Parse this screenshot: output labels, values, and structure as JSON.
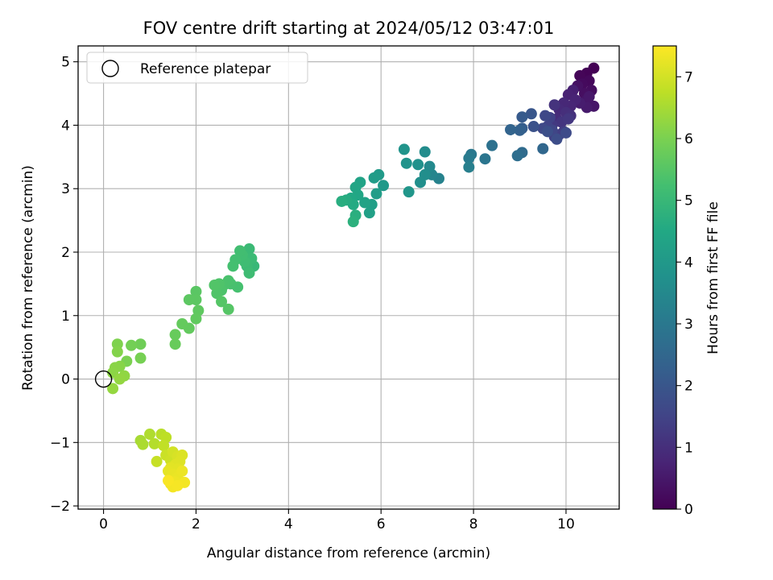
{
  "chart_data": {
    "type": "scatter",
    "title": "FOV centre drift starting at 2024/05/12 03:47:01",
    "xlabel": "Angular distance from reference (arcmin)",
    "ylabel": "Rotation from reference (arcmin)",
    "xlim": [
      -0.55,
      11.15
    ],
    "ylim": [
      -2.05,
      5.25
    ],
    "xticks": [
      0,
      2,
      4,
      6,
      8,
      10
    ],
    "yticks": [
      -2,
      -1,
      0,
      1,
      2,
      3,
      4,
      5
    ],
    "xtick_labels": [
      "0",
      "2",
      "4",
      "6",
      "8",
      "10"
    ],
    "ytick_labels": [
      "−2",
      "−1",
      "0",
      "1",
      "2",
      "3",
      "4",
      "5"
    ],
    "grid": true,
    "legend": {
      "position": "top-left",
      "entries": [
        "Reference platepar"
      ]
    },
    "reference_point": {
      "x": 0,
      "y": 0
    },
    "colorbar": {
      "label": "Hours from first FF file",
      "range": [
        0,
        7.5
      ],
      "ticks": [
        0,
        1,
        2,
        3,
        4,
        5,
        6,
        7
      ],
      "tick_labels": [
        "0",
        "1",
        "2",
        "3",
        "4",
        "5",
        "6",
        "7"
      ],
      "colormap": "viridis"
    },
    "points": [
      {
        "x": 10.6,
        "y": 4.9,
        "c": 0.0
      },
      {
        "x": 10.45,
        "y": 4.82,
        "c": 0.05
      },
      {
        "x": 10.3,
        "y": 4.78,
        "c": 0.1
      },
      {
        "x": 10.5,
        "y": 4.7,
        "c": 0.15
      },
      {
        "x": 10.35,
        "y": 4.65,
        "c": 0.2
      },
      {
        "x": 10.55,
        "y": 4.55,
        "c": 0.25
      },
      {
        "x": 10.4,
        "y": 4.5,
        "c": 0.3
      },
      {
        "x": 10.25,
        "y": 4.62,
        "c": 0.35
      },
      {
        "x": 10.45,
        "y": 4.4,
        "c": 0.4
      },
      {
        "x": 10.6,
        "y": 4.3,
        "c": 0.45
      },
      {
        "x": 10.5,
        "y": 4.45,
        "c": 0.5
      },
      {
        "x": 10.45,
        "y": 4.28,
        "c": 0.55
      },
      {
        "x": 10.3,
        "y": 4.35,
        "c": 0.6
      },
      {
        "x": 10.15,
        "y": 4.55,
        "c": 0.65
      },
      {
        "x": 10.05,
        "y": 4.48,
        "c": 0.7
      },
      {
        "x": 10.2,
        "y": 4.4,
        "c": 0.75
      },
      {
        "x": 10.1,
        "y": 4.3,
        "c": 0.8
      },
      {
        "x": 9.95,
        "y": 4.35,
        "c": 0.85
      },
      {
        "x": 9.85,
        "y": 4.25,
        "c": 0.9
      },
      {
        "x": 9.8,
        "y": 4.1,
        "c": 0.95
      },
      {
        "x": 10.0,
        "y": 4.2,
        "c": 1.0
      },
      {
        "x": 10.1,
        "y": 4.15,
        "c": 1.05
      },
      {
        "x": 9.75,
        "y": 4.32,
        "c": 1.1
      },
      {
        "x": 9.9,
        "y": 4.05,
        "c": 1.15
      },
      {
        "x": 10.05,
        "y": 4.1,
        "c": 1.2
      },
      {
        "x": 9.7,
        "y": 4.0,
        "c": 1.25
      },
      {
        "x": 9.95,
        "y": 3.9,
        "c": 1.3
      },
      {
        "x": 9.85,
        "y": 3.85,
        "c": 1.35
      },
      {
        "x": 9.75,
        "y": 3.82,
        "c": 1.4
      },
      {
        "x": 9.65,
        "y": 4.12,
        "c": 1.45
      },
      {
        "x": 9.6,
        "y": 3.98,
        "c": 1.5
      },
      {
        "x": 9.7,
        "y": 3.92,
        "c": 1.55
      },
      {
        "x": 9.55,
        "y": 4.15,
        "c": 1.6
      },
      {
        "x": 9.5,
        "y": 3.95,
        "c": 1.65
      },
      {
        "x": 10.0,
        "y": 3.88,
        "c": 1.7
      },
      {
        "x": 9.8,
        "y": 3.78,
        "c": 1.75
      },
      {
        "x": 9.6,
        "y": 3.9,
        "c": 1.8
      },
      {
        "x": 9.3,
        "y": 3.98,
        "c": 1.9
      },
      {
        "x": 9.25,
        "y": 4.18,
        "c": 2.0
      },
      {
        "x": 9.05,
        "y": 4.13,
        "c": 2.1
      },
      {
        "x": 9.05,
        "y": 3.95,
        "c": 2.2
      },
      {
        "x": 9.0,
        "y": 3.92,
        "c": 2.3
      },
      {
        "x": 8.8,
        "y": 3.93,
        "c": 2.4
      },
      {
        "x": 9.5,
        "y": 3.63,
        "c": 2.5
      },
      {
        "x": 9.05,
        "y": 3.57,
        "c": 2.6
      },
      {
        "x": 8.95,
        "y": 3.52,
        "c": 2.7
      },
      {
        "x": 8.4,
        "y": 3.68,
        "c": 2.8
      },
      {
        "x": 8.25,
        "y": 3.47,
        "c": 2.9
      },
      {
        "x": 7.95,
        "y": 3.54,
        "c": 3.0
      },
      {
        "x": 7.9,
        "y": 3.48,
        "c": 3.1
      },
      {
        "x": 7.9,
        "y": 3.34,
        "c": 3.2
      },
      {
        "x": 7.25,
        "y": 3.16,
        "c": 3.3
      },
      {
        "x": 7.1,
        "y": 3.22,
        "c": 3.4
      },
      {
        "x": 7.05,
        "y": 3.35,
        "c": 3.5
      },
      {
        "x": 6.95,
        "y": 3.58,
        "c": 3.6
      },
      {
        "x": 6.95,
        "y": 3.22,
        "c": 3.65
      },
      {
        "x": 6.85,
        "y": 3.1,
        "c": 3.7
      },
      {
        "x": 6.8,
        "y": 3.38,
        "c": 3.75
      },
      {
        "x": 6.55,
        "y": 3.4,
        "c": 3.8
      },
      {
        "x": 6.5,
        "y": 3.62,
        "c": 3.85
      },
      {
        "x": 6.6,
        "y": 2.95,
        "c": 3.9
      },
      {
        "x": 6.05,
        "y": 3.05,
        "c": 4.0
      },
      {
        "x": 5.95,
        "y": 3.22,
        "c": 4.05
      },
      {
        "x": 5.85,
        "y": 3.17,
        "c": 4.1
      },
      {
        "x": 5.9,
        "y": 2.92,
        "c": 4.15
      },
      {
        "x": 5.8,
        "y": 2.75,
        "c": 4.2
      },
      {
        "x": 5.75,
        "y": 2.62,
        "c": 4.25
      },
      {
        "x": 5.65,
        "y": 2.78,
        "c": 4.3
      },
      {
        "x": 5.55,
        "y": 3.1,
        "c": 4.35
      },
      {
        "x": 5.45,
        "y": 3.02,
        "c": 4.4
      },
      {
        "x": 5.5,
        "y": 2.9,
        "c": 4.45
      },
      {
        "x": 5.35,
        "y": 2.85,
        "c": 4.5
      },
      {
        "x": 5.4,
        "y": 2.75,
        "c": 4.55
      },
      {
        "x": 5.25,
        "y": 2.82,
        "c": 4.6
      },
      {
        "x": 5.15,
        "y": 2.8,
        "c": 4.65
      },
      {
        "x": 5.45,
        "y": 2.58,
        "c": 4.7
      },
      {
        "x": 5.4,
        "y": 2.48,
        "c": 4.75
      },
      {
        "x": 3.25,
        "y": 1.78,
        "c": 5.0
      },
      {
        "x": 3.15,
        "y": 2.05,
        "c": 5.05
      },
      {
        "x": 3.2,
        "y": 1.9,
        "c": 5.08
      },
      {
        "x": 3.1,
        "y": 1.78,
        "c": 5.1
      },
      {
        "x": 3.15,
        "y": 1.67,
        "c": 5.13
      },
      {
        "x": 3.05,
        "y": 1.85,
        "c": 5.15
      },
      {
        "x": 3.0,
        "y": 1.95,
        "c": 5.18
      },
      {
        "x": 2.95,
        "y": 2.02,
        "c": 5.2
      },
      {
        "x": 2.85,
        "y": 1.88,
        "c": 5.23
      },
      {
        "x": 2.8,
        "y": 1.78,
        "c": 5.25
      },
      {
        "x": 2.9,
        "y": 1.45,
        "c": 5.28
      },
      {
        "x": 2.75,
        "y": 1.5,
        "c": 5.3
      },
      {
        "x": 2.7,
        "y": 1.55,
        "c": 5.33
      },
      {
        "x": 2.6,
        "y": 1.48,
        "c": 5.35
      },
      {
        "x": 2.55,
        "y": 1.4,
        "c": 5.38
      },
      {
        "x": 2.5,
        "y": 1.5,
        "c": 5.4
      },
      {
        "x": 2.45,
        "y": 1.35,
        "c": 5.43
      },
      {
        "x": 2.4,
        "y": 1.48,
        "c": 5.45
      },
      {
        "x": 2.55,
        "y": 1.22,
        "c": 5.48
      },
      {
        "x": 2.7,
        "y": 1.1,
        "c": 5.5
      },
      {
        "x": 2.0,
        "y": 1.38,
        "c": 5.55
      },
      {
        "x": 2.0,
        "y": 1.25,
        "c": 5.58
      },
      {
        "x": 1.85,
        "y": 1.25,
        "c": 5.6
      },
      {
        "x": 2.05,
        "y": 1.08,
        "c": 5.63
      },
      {
        "x": 2.0,
        "y": 0.95,
        "c": 5.65
      },
      {
        "x": 1.85,
        "y": 0.8,
        "c": 5.68
      },
      {
        "x": 1.7,
        "y": 0.87,
        "c": 5.7
      },
      {
        "x": 1.55,
        "y": 0.7,
        "c": 5.73
      },
      {
        "x": 1.55,
        "y": 0.55,
        "c": 5.75
      },
      {
        "x": 0.8,
        "y": 0.55,
        "c": 5.85
      },
      {
        "x": 0.6,
        "y": 0.53,
        "c": 5.9
      },
      {
        "x": 0.8,
        "y": 0.33,
        "c": 5.95
      },
      {
        "x": 0.5,
        "y": 0.28,
        "c": 6.0
      },
      {
        "x": 0.3,
        "y": 0.55,
        "c": 6.05
      },
      {
        "x": 0.3,
        "y": 0.43,
        "c": 6.1
      },
      {
        "x": 0.35,
        "y": 0.2,
        "c": 6.15
      },
      {
        "x": 0.25,
        "y": 0.18,
        "c": 6.18
      },
      {
        "x": 0.2,
        "y": 0.1,
        "c": 6.2
      },
      {
        "x": 0.45,
        "y": 0.05,
        "c": 6.25
      },
      {
        "x": 0.35,
        "y": 0.0,
        "c": 6.28
      },
      {
        "x": 0.2,
        "y": -0.15,
        "c": 6.3
      },
      {
        "x": 0.8,
        "y": -0.97,
        "c": 6.5
      },
      {
        "x": 0.85,
        "y": -1.03,
        "c": 6.55
      },
      {
        "x": 1.0,
        "y": -0.87,
        "c": 6.6
      },
      {
        "x": 1.1,
        "y": -1.02,
        "c": 6.65
      },
      {
        "x": 1.25,
        "y": -0.87,
        "c": 6.7
      },
      {
        "x": 1.35,
        "y": -0.92,
        "c": 6.75
      },
      {
        "x": 1.3,
        "y": -1.05,
        "c": 6.8
      },
      {
        "x": 1.15,
        "y": -1.3,
        "c": 6.85
      },
      {
        "x": 1.35,
        "y": -1.2,
        "c": 6.9
      },
      {
        "x": 1.45,
        "y": -1.28,
        "c": 6.95
      },
      {
        "x": 1.5,
        "y": -1.15,
        "c": 7.0
      },
      {
        "x": 1.6,
        "y": -1.22,
        "c": 7.05
      },
      {
        "x": 1.7,
        "y": -1.2,
        "c": 7.1
      },
      {
        "x": 1.65,
        "y": -1.3,
        "c": 7.12
      },
      {
        "x": 1.55,
        "y": -1.35,
        "c": 7.15
      },
      {
        "x": 1.45,
        "y": -1.4,
        "c": 7.18
      },
      {
        "x": 1.6,
        "y": -1.42,
        "c": 7.2
      },
      {
        "x": 1.4,
        "y": -1.45,
        "c": 7.22
      },
      {
        "x": 1.5,
        "y": -1.5,
        "c": 7.25
      },
      {
        "x": 1.6,
        "y": -1.55,
        "c": 7.28
      },
      {
        "x": 1.7,
        "y": -1.45,
        "c": 7.3
      },
      {
        "x": 1.55,
        "y": -1.62,
        "c": 7.33
      },
      {
        "x": 1.45,
        "y": -1.65,
        "c": 7.35
      },
      {
        "x": 1.75,
        "y": -1.63,
        "c": 7.38
      },
      {
        "x": 1.5,
        "y": -1.7,
        "c": 7.4
      },
      {
        "x": 1.6,
        "y": -1.68,
        "c": 7.42
      },
      {
        "x": 1.4,
        "y": -1.6,
        "c": 7.45
      }
    ]
  }
}
